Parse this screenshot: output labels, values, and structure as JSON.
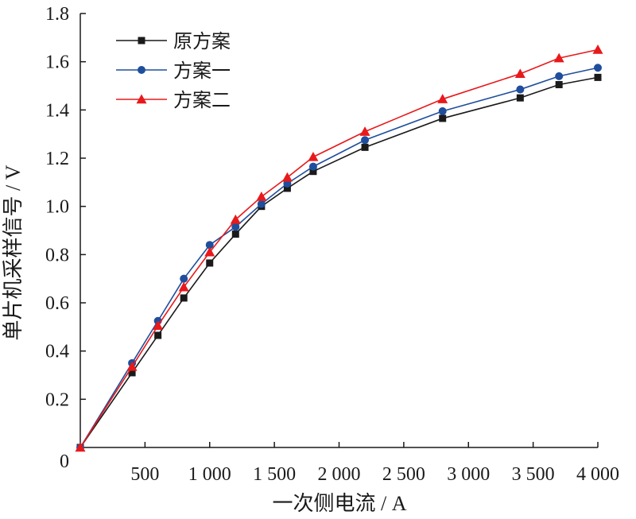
{
  "chart_data": {
    "type": "line",
    "xlabel": "一次侧电流 / A",
    "ylabel": "单片机采样信号 / V",
    "xlim": [
      0,
      4000
    ],
    "ylim": [
      0,
      1.8
    ],
    "x_ticks": [
      500,
      1000,
      1500,
      2000,
      2500,
      3000,
      3500,
      4000
    ],
    "x_tick_labels": [
      "500",
      "1 000",
      "1 500",
      "2 000",
      "2 500",
      "3 000",
      "3 500",
      "4 000"
    ],
    "y_ticks": [
      0,
      0.2,
      0.4,
      0.6,
      0.8,
      1.0,
      1.2,
      1.4,
      1.6,
      1.8
    ],
    "y_tick_labels": [
      "0",
      "0.2",
      "0.4",
      "0.6",
      "0.8",
      "1.0",
      "1.2",
      "1.4",
      "1.6",
      "1.8"
    ],
    "grid": false,
    "legend_position": "top-left",
    "x": [
      0,
      400,
      600,
      800,
      1000,
      1200,
      1400,
      1600,
      1800,
      2200,
      2800,
      3400,
      3700,
      4000
    ],
    "series": [
      {
        "name": "原方案",
        "marker": "square",
        "color": "#1a1a1a",
        "values": [
          0,
          0.31,
          0.465,
          0.62,
          0.765,
          0.885,
          1.0,
          1.075,
          1.145,
          1.245,
          1.365,
          1.45,
          1.505,
          1.535
        ]
      },
      {
        "name": "方案一",
        "marker": "circle",
        "color": "#1f4e9c",
        "values": [
          0,
          0.35,
          0.525,
          0.7,
          0.84,
          0.915,
          1.01,
          1.095,
          1.165,
          1.275,
          1.395,
          1.485,
          1.54,
          1.575
        ]
      },
      {
        "name": "方案二",
        "marker": "triangle",
        "color": "#e8191b",
        "values": [
          0,
          0.335,
          0.505,
          0.665,
          0.81,
          0.945,
          1.04,
          1.12,
          1.205,
          1.31,
          1.445,
          1.55,
          1.615,
          1.65
        ]
      }
    ]
  }
}
